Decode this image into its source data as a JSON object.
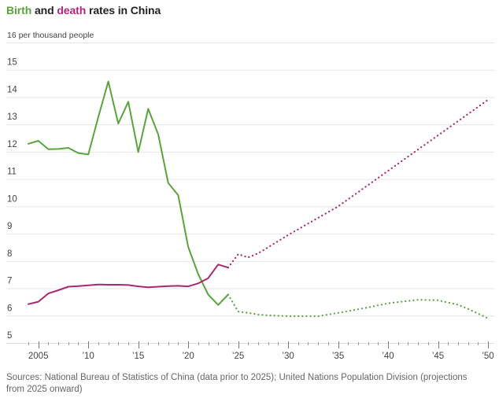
{
  "title": {
    "birth_word": "Birth",
    "middle_word": " and ",
    "death_word": "death",
    "rest": " rates in China"
  },
  "source": "Sources: National Bureau of Statistics of China (data prior to 2025); United Nations Population Division (projections from 2025 onward)",
  "colors": {
    "birth": "#5aa43e",
    "death": "#a8286f",
    "grid": "#e6e6e6",
    "axis": "#bbbbbb",
    "tick_text": "#444444"
  },
  "chart_data": {
    "type": "line",
    "title": "Birth and death rates in China",
    "ylabel": "per thousand people",
    "y_top_label": "16 per thousand people",
    "xlabel": "",
    "ylim": [
      5,
      16
    ],
    "xlim": [
      2004,
      2050
    ],
    "grid": true,
    "yticks": [
      5,
      6,
      7,
      8,
      9,
      10,
      11,
      12,
      13,
      14,
      15,
      16
    ],
    "ytick_labels": [
      "5",
      "6",
      "7",
      "8",
      "9",
      "10",
      "11",
      "12",
      "13",
      "14",
      "15",
      "16 per thousand people"
    ],
    "xticks": [
      2005,
      2010,
      2015,
      2020,
      2025,
      2030,
      2035,
      2040,
      2045,
      2050
    ],
    "xtick_labels": [
      "2005",
      "’10",
      "’15",
      "’20",
      "’25",
      "’30",
      "’35",
      "’40",
      "’45",
      "’50"
    ],
    "series": [
      {
        "name": "Birth rate",
        "style": "solid",
        "color_key": "birth",
        "x": [
          2004,
          2005,
          2006,
          2007,
          2008,
          2009,
          2010,
          2011,
          2012,
          2013,
          2014,
          2015,
          2016,
          2017,
          2018,
          2019,
          2020,
          2021,
          2022,
          2023,
          2024
        ],
        "values": [
          12.29,
          12.4,
          12.09,
          12.1,
          12.14,
          11.95,
          11.9,
          13.27,
          14.57,
          13.03,
          13.83,
          11.99,
          13.57,
          12.64,
          10.86,
          10.41,
          8.52,
          7.52,
          6.77,
          6.39,
          6.77
        ]
      },
      {
        "name": "Birth rate (projection)",
        "style": "dotted",
        "color_key": "birth",
        "x": [
          2024,
          2025,
          2026,
          2027,
          2028,
          2030,
          2033,
          2035,
          2038,
          2040,
          2043,
          2045,
          2047,
          2048,
          2050
        ],
        "values": [
          6.77,
          6.15,
          6.1,
          6.04,
          6.01,
          5.98,
          5.98,
          6.1,
          6.3,
          6.45,
          6.58,
          6.56,
          6.4,
          6.25,
          5.9
        ]
      },
      {
        "name": "Death rate",
        "style": "solid",
        "color_key": "death",
        "x": [
          2004,
          2005,
          2006,
          2007,
          2008,
          2009,
          2010,
          2011,
          2012,
          2013,
          2014,
          2015,
          2016,
          2017,
          2018,
          2019,
          2020,
          2021,
          2022,
          2023,
          2024
        ],
        "values": [
          6.42,
          6.51,
          6.81,
          6.93,
          7.06,
          7.08,
          7.11,
          7.14,
          7.13,
          7.13,
          7.12,
          7.07,
          7.04,
          7.06,
          7.08,
          7.09,
          7.07,
          7.18,
          7.37,
          7.87,
          7.76
        ]
      },
      {
        "name": "Death rate (projection)",
        "style": "dotted",
        "color_key": "death",
        "x": [
          2024,
          2025,
          2026,
          2027,
          2030,
          2035,
          2040,
          2045,
          2050
        ],
        "values": [
          7.76,
          8.25,
          8.13,
          8.28,
          8.95,
          10.0,
          11.3,
          12.6,
          13.9
        ]
      }
    ],
    "legend": "inline-title"
  }
}
